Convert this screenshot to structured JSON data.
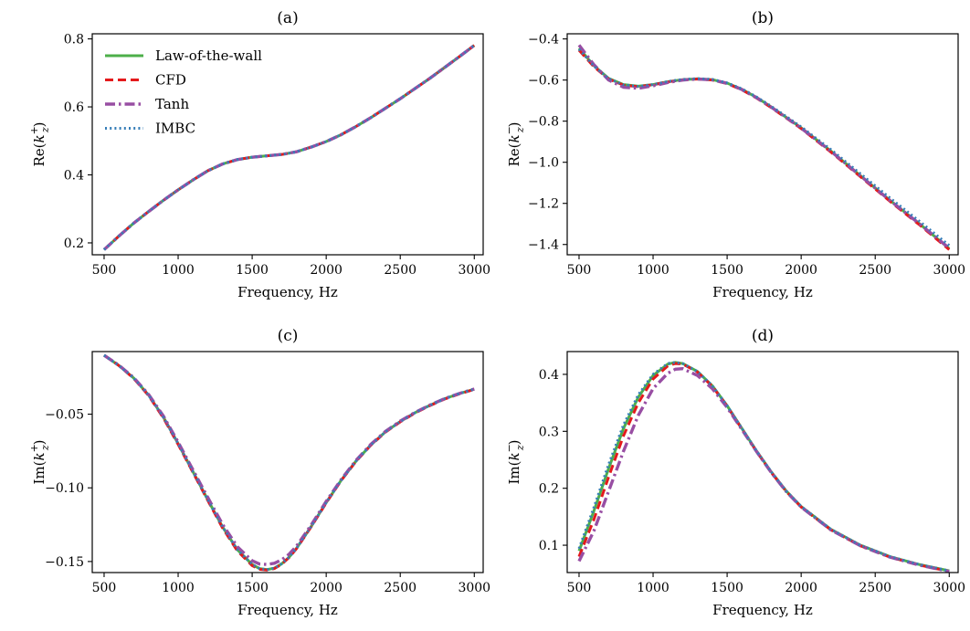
{
  "figure": {
    "legend": {
      "location": "upper-left of panel (a)",
      "entries": [
        {
          "label": "Law-of-the-wall",
          "color": "#4daf4a",
          "dash": "solid"
        },
        {
          "label": "CFD",
          "color": "#e41a1c",
          "dash": "dashed"
        },
        {
          "label": "Tanh",
          "color": "#984ea3",
          "dash": "dashdot"
        },
        {
          "label": "IMBC",
          "color": "#377eb8",
          "dash": "dotted"
        }
      ]
    }
  },
  "chart_data": [
    {
      "type": "line",
      "title": "(a)",
      "xlabel": "Frequency, Hz",
      "ylabel": "Re(k_z^+)",
      "ylabel_parts": {
        "pre": "Re(",
        "base": "k",
        "sup": "+",
        "sub": "z",
        "post": ")"
      },
      "xlim": [
        420,
        3060
      ],
      "ylim": [
        0.165,
        0.815
      ],
      "xticks": [
        500,
        1000,
        1500,
        2000,
        2500,
        3000
      ],
      "xtick_labels": [
        "500",
        "1000",
        "1500",
        "2000",
        "2500",
        "3000"
      ],
      "yticks": [
        0.2,
        0.4,
        0.6,
        0.8
      ],
      "ytick_labels": [
        "0.2",
        "0.4",
        "0.6",
        "0.8"
      ],
      "x": [
        500,
        600,
        700,
        800,
        900,
        1000,
        1100,
        1200,
        1300,
        1400,
        1500,
        1600,
        1700,
        1800,
        1900,
        2000,
        2100,
        2200,
        2300,
        2400,
        2500,
        2600,
        2700,
        2800,
        2900,
        3000
      ],
      "series": [
        {
          "name": "Law-of-the-wall",
          "values": [
            0.18,
            0.22,
            0.258,
            0.292,
            0.325,
            0.356,
            0.385,
            0.412,
            0.432,
            0.445,
            0.452,
            0.456,
            0.46,
            0.468,
            0.482,
            0.498,
            0.518,
            0.542,
            0.568,
            0.596,
            0.624,
            0.654,
            0.684,
            0.716,
            0.748,
            0.781
          ]
        },
        {
          "name": "CFD",
          "values": [
            0.18,
            0.22,
            0.258,
            0.292,
            0.325,
            0.356,
            0.385,
            0.412,
            0.432,
            0.445,
            0.452,
            0.456,
            0.46,
            0.468,
            0.482,
            0.498,
            0.518,
            0.542,
            0.568,
            0.596,
            0.624,
            0.654,
            0.684,
            0.716,
            0.748,
            0.781
          ]
        },
        {
          "name": "Tanh",
          "values": [
            0.18,
            0.22,
            0.258,
            0.292,
            0.325,
            0.356,
            0.385,
            0.412,
            0.432,
            0.445,
            0.452,
            0.456,
            0.46,
            0.468,
            0.482,
            0.498,
            0.518,
            0.542,
            0.568,
            0.596,
            0.624,
            0.654,
            0.684,
            0.716,
            0.748,
            0.781
          ]
        },
        {
          "name": "IMBC",
          "values": [
            0.18,
            0.22,
            0.258,
            0.292,
            0.325,
            0.356,
            0.385,
            0.412,
            0.432,
            0.445,
            0.452,
            0.456,
            0.46,
            0.468,
            0.482,
            0.498,
            0.518,
            0.542,
            0.568,
            0.596,
            0.624,
            0.654,
            0.684,
            0.716,
            0.748,
            0.781
          ]
        }
      ]
    },
    {
      "type": "line",
      "title": "(b)",
      "xlabel": "Frequency, Hz",
      "ylabel": "Re(k_z^-)",
      "ylabel_parts": {
        "pre": "Re(",
        "base": "k",
        "sup": "−",
        "sub": "z",
        "post": ")"
      },
      "xlim": [
        420,
        3060
      ],
      "ylim": [
        -1.45,
        -0.375
      ],
      "xticks": [
        500,
        1000,
        1500,
        2000,
        2500,
        3000
      ],
      "xtick_labels": [
        "500",
        "1000",
        "1500",
        "2000",
        "2500",
        "3000"
      ],
      "yticks": [
        -1.4,
        -1.2,
        -1.0,
        -0.8,
        -0.6,
        -0.4
      ],
      "ytick_labels": [
        "−1.4",
        "−1.2",
        "−1.0",
        "−0.8",
        "−0.6",
        "−0.4"
      ],
      "x": [
        500,
        600,
        700,
        800,
        900,
        1000,
        1100,
        1200,
        1300,
        1400,
        1500,
        1600,
        1700,
        1800,
        1900,
        2000,
        2200,
        2400,
        2600,
        2800,
        3000
      ],
      "series": [
        {
          "name": "Law-of-the-wall",
          "values": [
            -0.445,
            -0.53,
            -0.592,
            -0.622,
            -0.63,
            -0.622,
            -0.608,
            -0.598,
            -0.594,
            -0.598,
            -0.615,
            -0.645,
            -0.685,
            -0.732,
            -0.782,
            -0.832,
            -0.945,
            -1.065,
            -1.185,
            -1.3,
            -1.42
          ]
        },
        {
          "name": "CFD",
          "values": [
            -0.455,
            -0.535,
            -0.595,
            -0.625,
            -0.632,
            -0.623,
            -0.609,
            -0.599,
            -0.595,
            -0.6,
            -0.617,
            -0.648,
            -0.688,
            -0.735,
            -0.785,
            -0.836,
            -0.95,
            -1.07,
            -1.19,
            -1.305,
            -1.425
          ]
        },
        {
          "name": "Tanh",
          "values": [
            -0.43,
            -0.525,
            -0.6,
            -0.635,
            -0.64,
            -0.628,
            -0.612,
            -0.6,
            -0.595,
            -0.599,
            -0.616,
            -0.646,
            -0.686,
            -0.733,
            -0.783,
            -0.834,
            -0.946,
            -1.066,
            -1.186,
            -1.3,
            -1.418
          ]
        },
        {
          "name": "IMBC",
          "values": [
            -0.45,
            -0.532,
            -0.593,
            -0.623,
            -0.631,
            -0.622,
            -0.607,
            -0.597,
            -0.593,
            -0.597,
            -0.614,
            -0.643,
            -0.683,
            -0.729,
            -0.778,
            -0.828,
            -0.938,
            -1.056,
            -1.174,
            -1.288,
            -1.405
          ]
        }
      ]
    },
    {
      "type": "line",
      "title": "(c)",
      "xlabel": "Frequency, Hz",
      "ylabel": "Im(k_z^+)",
      "ylabel_parts": {
        "pre": "Im(",
        "base": "k",
        "sup": "+",
        "sub": "z",
        "post": ")"
      },
      "xlim": [
        420,
        3060
      ],
      "ylim": [
        -0.1575,
        -0.0075
      ],
      "xticks": [
        500,
        1000,
        1500,
        2000,
        2500,
        3000
      ],
      "xtick_labels": [
        "500",
        "1000",
        "1500",
        "2000",
        "2500",
        "3000"
      ],
      "yticks": [
        -0.15,
        -0.1,
        -0.05
      ],
      "ytick_labels": [
        "−0.15",
        "−0.10",
        "−0.05"
      ],
      "x": [
        500,
        600,
        700,
        800,
        900,
        1000,
        1100,
        1200,
        1300,
        1400,
        1500,
        1550,
        1600,
        1650,
        1700,
        1750,
        1800,
        1900,
        2000,
        2100,
        2200,
        2300,
        2400,
        2500,
        2600,
        2700,
        2800,
        2900,
        3000
      ],
      "series": [
        {
          "name": "Law-of-the-wall",
          "values": [
            -0.01,
            -0.017,
            -0.0255,
            -0.037,
            -0.052,
            -0.07,
            -0.089,
            -0.108,
            -0.1265,
            -0.142,
            -0.152,
            -0.1548,
            -0.1555,
            -0.1545,
            -0.1515,
            -0.147,
            -0.141,
            -0.126,
            -0.11,
            -0.095,
            -0.082,
            -0.071,
            -0.062,
            -0.055,
            -0.049,
            -0.044,
            -0.0395,
            -0.036,
            -0.033
          ]
        },
        {
          "name": "CFD",
          "values": [
            -0.01,
            -0.017,
            -0.0257,
            -0.0373,
            -0.0525,
            -0.0705,
            -0.0895,
            -0.1085,
            -0.1272,
            -0.1428,
            -0.1528,
            -0.1553,
            -0.1558,
            -0.1548,
            -0.1518,
            -0.1472,
            -0.1412,
            -0.1262,
            -0.1102,
            -0.0952,
            -0.0822,
            -0.0712,
            -0.0622,
            -0.0552,
            -0.0492,
            -0.0442,
            -0.0397,
            -0.0362,
            -0.0332
          ]
        },
        {
          "name": "Tanh",
          "values": [
            -0.01,
            -0.0168,
            -0.0252,
            -0.0365,
            -0.0512,
            -0.069,
            -0.0878,
            -0.1065,
            -0.1248,
            -0.14,
            -0.1495,
            -0.1517,
            -0.152,
            -0.1512,
            -0.1488,
            -0.145,
            -0.1395,
            -0.125,
            -0.1092,
            -0.0945,
            -0.0815,
            -0.0706,
            -0.0617,
            -0.0547,
            -0.0488,
            -0.0438,
            -0.0394,
            -0.0359,
            -0.0329
          ]
        },
        {
          "name": "IMBC",
          "values": [
            -0.01,
            -0.017,
            -0.0255,
            -0.037,
            -0.052,
            -0.07,
            -0.089,
            -0.108,
            -0.1265,
            -0.142,
            -0.152,
            -0.1548,
            -0.1555,
            -0.1545,
            -0.1515,
            -0.147,
            -0.141,
            -0.126,
            -0.11,
            -0.095,
            -0.082,
            -0.071,
            -0.062,
            -0.055,
            -0.049,
            -0.044,
            -0.0395,
            -0.036,
            -0.033
          ]
        }
      ]
    },
    {
      "type": "line",
      "title": "(d)",
      "xlabel": "Frequency, Hz",
      "ylabel": "Im(k_z^-)",
      "ylabel_parts": {
        "pre": "Im(",
        "base": "k",
        "sup": "−",
        "sub": "z",
        "post": ")"
      },
      "xlim": [
        420,
        3060
      ],
      "ylim": [
        0.052,
        0.44
      ],
      "xticks": [
        500,
        1000,
        1500,
        2000,
        2500,
        3000
      ],
      "xtick_labels": [
        "500",
        "1000",
        "1500",
        "2000",
        "2500",
        "3000"
      ],
      "yticks": [
        0.1,
        0.2,
        0.3,
        0.4
      ],
      "ytick_labels": [
        "0.1",
        "0.2",
        "0.3",
        "0.4"
      ],
      "x": [
        500,
        600,
        700,
        800,
        900,
        1000,
        1100,
        1150,
        1200,
        1300,
        1400,
        1500,
        1600,
        1700,
        1800,
        1900,
        2000,
        2200,
        2400,
        2600,
        2800,
        3000
      ],
      "series": [
        {
          "name": "Law-of-the-wall",
          "values": [
            0.09,
            0.16,
            0.235,
            0.305,
            0.36,
            0.398,
            0.418,
            0.421,
            0.419,
            0.405,
            0.38,
            0.345,
            0.305,
            0.265,
            0.228,
            0.195,
            0.168,
            0.128,
            0.1,
            0.08,
            0.066,
            0.055
          ]
        },
        {
          "name": "CFD",
          "values": [
            0.08,
            0.145,
            0.22,
            0.292,
            0.35,
            0.392,
            0.415,
            0.419,
            0.418,
            0.404,
            0.379,
            0.344,
            0.304,
            0.264,
            0.227,
            0.194,
            0.167,
            0.127,
            0.099,
            0.079,
            0.065,
            0.054
          ]
        },
        {
          "name": "Tanh",
          "values": [
            0.072,
            0.125,
            0.195,
            0.265,
            0.328,
            0.375,
            0.402,
            0.409,
            0.41,
            0.398,
            0.375,
            0.342,
            0.303,
            0.264,
            0.227,
            0.194,
            0.167,
            0.127,
            0.099,
            0.079,
            0.065,
            0.054
          ]
        },
        {
          "name": "IMBC",
          "values": [
            0.094,
            0.166,
            0.242,
            0.311,
            0.364,
            0.4,
            0.419,
            0.421,
            0.419,
            0.405,
            0.38,
            0.345,
            0.305,
            0.265,
            0.228,
            0.195,
            0.168,
            0.128,
            0.1,
            0.08,
            0.066,
            0.055
          ]
        }
      ]
    }
  ]
}
